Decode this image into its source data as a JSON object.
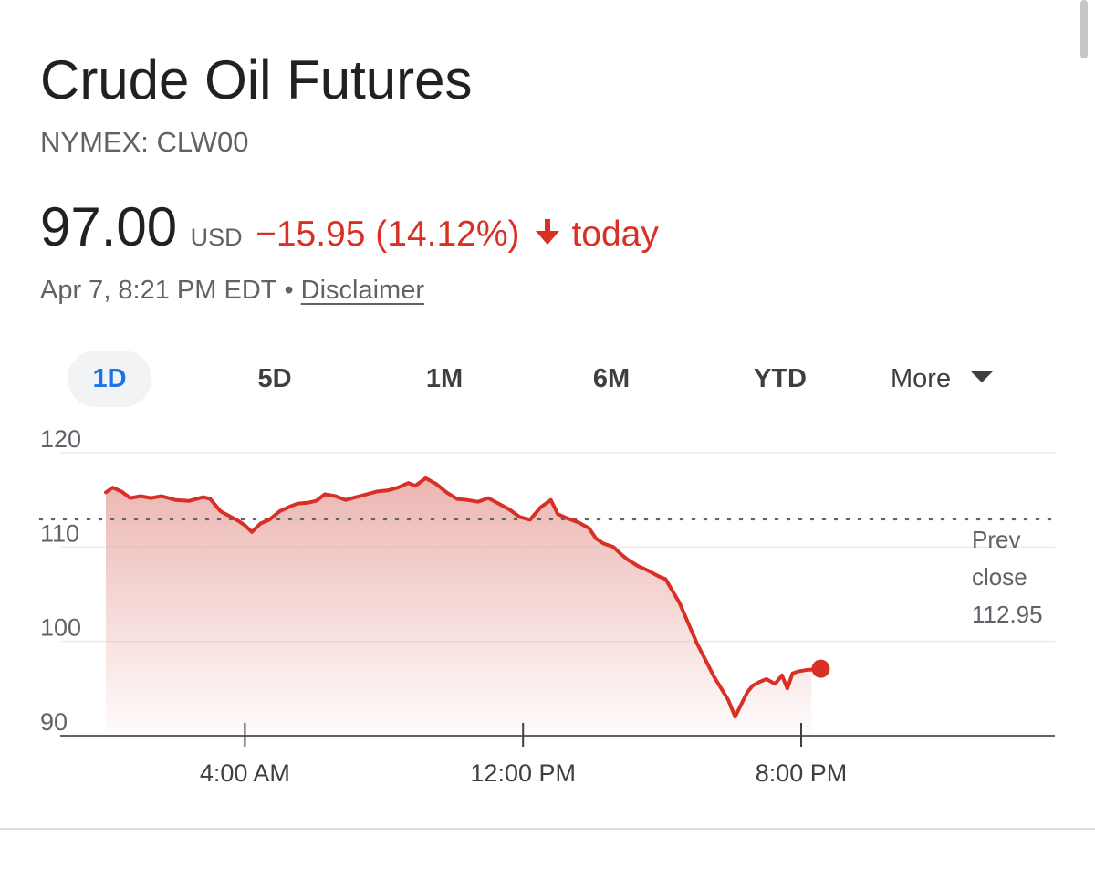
{
  "header": {
    "title": "Crude Oil Futures",
    "ticker": "NYMEX: CLW00",
    "price": "97.00",
    "currency": "USD",
    "change": "−15.95 (14.12%)",
    "change_direction_icon": "arrow-down-icon",
    "period": "today",
    "timestamp": "Apr 7, 8:21 PM EDT",
    "separator": "•",
    "disclaimer": "Disclaimer"
  },
  "range_tabs": [
    {
      "label": "1D",
      "active": true
    },
    {
      "label": "5D",
      "active": false
    },
    {
      "label": "1M",
      "active": false
    },
    {
      "label": "6M",
      "active": false
    },
    {
      "label": "YTD",
      "active": false
    },
    {
      "label": "More",
      "active": false
    }
  ],
  "colors": {
    "negative": "#d93025",
    "active_tab": "#1a73e8",
    "active_tab_bg": "#f1f3f4",
    "axis_text": "#5f6368",
    "gridline": "#ebebeb",
    "fill_top": "#e8a9a4"
  },
  "chart_data": {
    "type": "line",
    "ylim": [
      90,
      120
    ],
    "yticks": [
      "120",
      "110",
      "100",
      "90"
    ],
    "ytick_values": [
      120,
      110,
      100,
      90
    ],
    "xlim_hours": [
      0,
      24
    ],
    "xticks": [
      {
        "label": "4:00 AM",
        "hour": 4
      },
      {
        "label": "12:00 PM",
        "hour": 12
      },
      {
        "label": "8:00 PM",
        "hour": 20
      }
    ],
    "prev_close": {
      "label_line1": "Prev",
      "label_line2": "close",
      "value": 112.95,
      "value_text": "112.95"
    },
    "last_point_marker": true,
    "grid": true,
    "series": [
      {
        "x_hours": [
          0.0,
          0.2,
          0.45,
          0.7,
          1.0,
          1.3,
          1.6,
          2.0,
          2.4,
          2.8,
          3.0,
          3.3,
          3.6,
          3.8,
          4.0,
          4.2,
          4.45,
          4.7,
          5.0,
          5.3,
          5.5,
          5.8,
          6.05,
          6.3,
          6.6,
          6.9,
          7.2,
          7.5,
          7.8,
          8.1,
          8.4,
          8.7,
          8.9,
          9.2,
          9.5,
          9.8,
          10.1,
          10.4,
          10.7,
          11.0,
          11.3,
          11.6,
          11.9,
          12.2,
          12.5,
          12.8,
          13.0,
          13.3,
          13.6,
          13.9,
          14.1,
          14.3,
          14.6,
          14.8,
          15.0,
          15.3,
          15.6,
          15.9,
          16.1,
          16.5,
          17.0,
          17.5,
          17.9,
          18.1,
          18.3,
          18.45,
          18.6,
          18.8,
          19.0,
          19.25,
          19.45,
          19.6,
          19.75,
          19.9,
          20.05,
          20.2,
          20.3
        ],
        "values": [
          115.8,
          116.3,
          115.9,
          115.2,
          115.4,
          115.2,
          115.4,
          115.0,
          114.9,
          115.3,
          115.1,
          113.8,
          113.2,
          112.8,
          112.3,
          111.6,
          112.5,
          112.9,
          113.8,
          114.3,
          114.6,
          114.7,
          114.9,
          115.6,
          115.4,
          115.0,
          115.3,
          115.6,
          115.9,
          116.0,
          116.3,
          116.8,
          116.5,
          117.3,
          116.7,
          115.8,
          115.1,
          115.0,
          114.8,
          115.2,
          114.6,
          114.0,
          113.2,
          112.9,
          114.2,
          115.0,
          113.5,
          113.0,
          112.6,
          112.0,
          110.9,
          110.4,
          110.0,
          109.3,
          108.7,
          108.0,
          107.5,
          106.9,
          106.6,
          104.1,
          99.8,
          96.2,
          93.8,
          92.0,
          93.5,
          94.6,
          95.3,
          95.7,
          96.0,
          95.5,
          96.4,
          95.0,
          96.6,
          96.8,
          96.9,
          97.0,
          97.0
        ]
      }
    ]
  }
}
